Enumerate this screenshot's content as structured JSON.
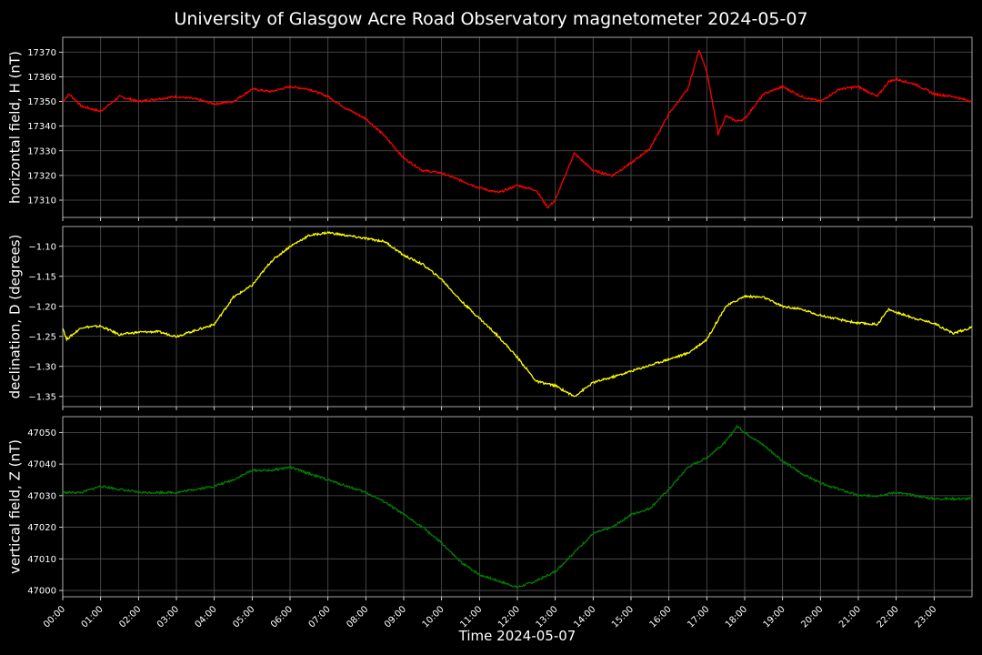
{
  "title": "University of Glasgow Acre Road Observatory magnetometer 2024-05-07",
  "xlabel": "Time 2024-05-07",
  "chart_data": {
    "type": "line",
    "x_ticks": [
      "00:00",
      "01:00",
      "02:00",
      "03:00",
      "04:00",
      "05:00",
      "06:00",
      "07:00",
      "08:00",
      "09:00",
      "10:00",
      "11:00",
      "12:00",
      "13:00",
      "14:00",
      "15:00",
      "16:00",
      "17:00",
      "18:00",
      "19:00",
      "20:00",
      "21:00",
      "22:00",
      "23:00"
    ],
    "x_range_hours": [
      0,
      24
    ],
    "grid": true,
    "panels": [
      {
        "ylabel": "horizontal field, H (nT)",
        "color": "#ff0000",
        "ylim": [
          17303,
          17376
        ],
        "yticks": [
          17310,
          17320,
          17330,
          17340,
          17350,
          17360,
          17370
        ],
        "ytick_labels": [
          "17310",
          "17320",
          "17330",
          "17340",
          "17350",
          "17360",
          "17370"
        ],
        "x": [
          0,
          0.17,
          0.5,
          1.0,
          1.5,
          2.0,
          2.5,
          3.0,
          3.5,
          4.0,
          4.5,
          5.0,
          5.5,
          6.0,
          6.5,
          7.0,
          7.5,
          8.0,
          8.5,
          9.0,
          9.5,
          10.0,
          10.5,
          11.0,
          11.5,
          12.0,
          12.5,
          12.8,
          13.0,
          13.5,
          14.0,
          14.5,
          15.0,
          15.5,
          16.0,
          16.5,
          16.8,
          17.0,
          17.3,
          17.5,
          17.8,
          18.0,
          18.5,
          19.0,
          19.5,
          20.0,
          20.5,
          21.0,
          21.5,
          21.8,
          22.0,
          22.5,
          23.0,
          23.5,
          24.0
        ],
        "y": [
          17350,
          17353,
          17348,
          17346,
          17352,
          17350,
          17351,
          17352,
          17351,
          17349,
          17350,
          17355,
          17354,
          17356,
          17355,
          17352,
          17347,
          17343,
          17336,
          17327,
          17322,
          17321,
          17318,
          17315,
          17313,
          17316,
          17314,
          17307,
          17310,
          17329,
          17322,
          17320,
          17325,
          17331,
          17345,
          17355,
          17371,
          17362,
          17337,
          17344,
          17342,
          17343,
          17353,
          17356,
          17352,
          17350,
          17355,
          17356,
          17352,
          17358,
          17359,
          17357,
          17353,
          17352,
          17350
        ]
      },
      {
        "ylabel": "declination, D (degrees)",
        "color": "#ffff00",
        "ylim": [
          -1.367,
          -1.067
        ],
        "yticks": [
          -1.35,
          -1.3,
          -1.25,
          -1.2,
          -1.15,
          -1.1
        ],
        "ytick_labels": [
          "−1.35",
          "−1.30",
          "−1.25",
          "−1.20",
          "−1.15",
          "−1.10"
        ],
        "x": [
          0,
          0.1,
          0.5,
          1.0,
          1.5,
          2.0,
          2.5,
          3.0,
          3.5,
          4.0,
          4.5,
          5.0,
          5.5,
          6.0,
          6.5,
          7.0,
          7.5,
          8.0,
          8.5,
          9.0,
          9.5,
          10.0,
          10.5,
          11.0,
          11.5,
          12.0,
          12.5,
          13.0,
          13.5,
          14.0,
          14.5,
          15.0,
          15.5,
          16.0,
          16.5,
          17.0,
          17.5,
          18.0,
          18.5,
          19.0,
          19.5,
          20.0,
          20.5,
          21.0,
          21.5,
          21.8,
          22.0,
          22.5,
          23.0,
          23.5,
          24.0
        ],
        "y": [
          -1.235,
          -1.255,
          -1.235,
          -1.233,
          -1.247,
          -1.243,
          -1.242,
          -1.25,
          -1.24,
          -1.23,
          -1.185,
          -1.165,
          -1.125,
          -1.1,
          -1.082,
          -1.077,
          -1.082,
          -1.087,
          -1.092,
          -1.115,
          -1.13,
          -1.155,
          -1.19,
          -1.22,
          -1.25,
          -1.285,
          -1.325,
          -1.332,
          -1.35,
          -1.327,
          -1.318,
          -1.308,
          -1.298,
          -1.288,
          -1.278,
          -1.255,
          -1.2,
          -1.183,
          -1.185,
          -1.2,
          -1.205,
          -1.215,
          -1.222,
          -1.228,
          -1.23,
          -1.205,
          -1.21,
          -1.22,
          -1.228,
          -1.245,
          -1.235
        ]
      },
      {
        "ylabel": "vertical field, Z (nT)",
        "color": "#008000",
        "ylim": [
          46998,
          47055
        ],
        "yticks": [
          47000,
          47010,
          47020,
          47030,
          47040,
          47050
        ],
        "ytick_labels": [
          "47000",
          "47010",
          "47020",
          "47030",
          "47040",
          "47050"
        ],
        "x": [
          0,
          0.5,
          1.0,
          1.5,
          2.0,
          2.5,
          3.0,
          3.5,
          4.0,
          4.5,
          5.0,
          5.5,
          6.0,
          6.5,
          7.0,
          7.5,
          8.0,
          8.5,
          9.0,
          9.5,
          10.0,
          10.5,
          11.0,
          11.5,
          12.0,
          12.5,
          13.0,
          13.5,
          14.0,
          14.5,
          15.0,
          15.5,
          16.0,
          16.5,
          17.0,
          17.5,
          17.8,
          18.0,
          18.5,
          19.0,
          19.5,
          20.0,
          20.5,
          21.0,
          21.5,
          22.0,
          22.5,
          23.0,
          23.5,
          24.0
        ],
        "y": [
          47031,
          47031,
          47033,
          47032,
          47031,
          47031,
          47031,
          47032,
          47033,
          47035,
          47038,
          47038,
          47039,
          47037,
          47035,
          47033,
          47031,
          47028,
          47024,
          47020,
          47015,
          47009,
          47005,
          47003,
          47001,
          47003,
          47006,
          47012,
          47018,
          47020,
          47024,
          47026,
          47032,
          47039,
          47042,
          47047,
          47052,
          47050,
          47046,
          47041,
          47037,
          47034,
          47032,
          47030,
          47030,
          47031,
          47030,
          47029,
          47029,
          47029
        ]
      }
    ]
  }
}
